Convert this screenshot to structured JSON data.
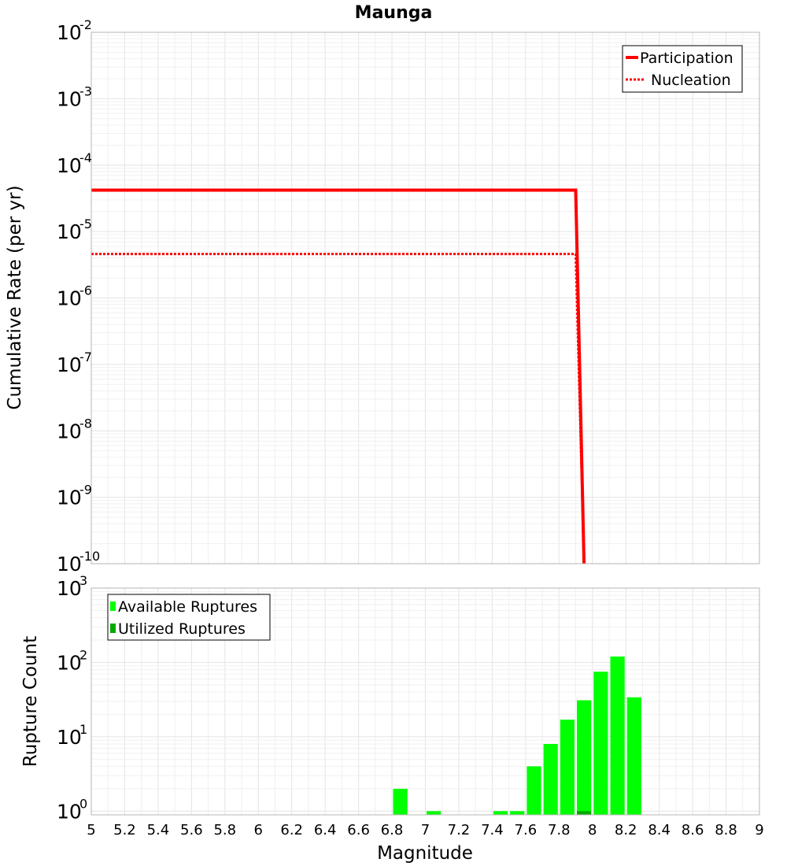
{
  "title": "Maunga",
  "colors": {
    "participation": "#ff0000",
    "nucleation": "#ff0000",
    "available": "#00ff00",
    "utilized": "#00aa00"
  },
  "chart_data": [
    {
      "type": "line",
      "title": "Maunga",
      "ylabel": "Cumulative Rate (per yr)",
      "xlabel": "",
      "yscale": "log",
      "xlim": [
        5,
        9
      ],
      "ylim_exp": [
        -10,
        -2
      ],
      "ytick_base": "10",
      "ytick_exponents": [
        "-10",
        "-9",
        "-8",
        "-7",
        "-6",
        "-5",
        "-4",
        "-3",
        "-2"
      ],
      "grid": true,
      "legend_position": "top-right",
      "series": [
        {
          "name": "Participation",
          "style": "solid",
          "x": [
            5.0,
            7.9,
            7.95
          ],
          "y": [
            4.2e-05,
            4.2e-05,
            1e-10
          ]
        },
        {
          "name": "Nucleation",
          "style": "dotted",
          "x": [
            5.0,
            7.9,
            7.95
          ],
          "y": [
            4.6e-06,
            4.6e-06,
            1e-10
          ]
        }
      ]
    },
    {
      "type": "bar",
      "title": "",
      "ylabel": "Rupture Count",
      "xlabel": "Magnitude",
      "yscale": "log",
      "xlim": [
        5,
        9
      ],
      "ylim_exp": [
        -0.05,
        3
      ],
      "ytick_base": "10",
      "ytick_exponents": [
        "0",
        "1",
        "2",
        "3"
      ],
      "xticks": [
        "5",
        "5.2",
        "5.4",
        "5.6",
        "5.8",
        "6",
        "6.2",
        "6.4",
        "6.6",
        "6.8",
        "7",
        "7.2",
        "7.4",
        "7.6",
        "7.8",
        "8",
        "8.2",
        "8.4",
        "8.6",
        "8.8",
        "9"
      ],
      "bin_width": 0.1,
      "grid": true,
      "legend_position": "top-left",
      "series": [
        {
          "name": "Available Ruptures",
          "x": [
            6.85,
            7.05,
            7.45,
            7.55,
            7.65,
            7.75,
            7.85,
            7.95,
            8.05,
            8.15,
            8.25
          ],
          "values": [
            2,
            1,
            1,
            1,
            4,
            8,
            17,
            31,
            75,
            120,
            34
          ]
        },
        {
          "name": "Utilized Ruptures",
          "x": [
            7.95
          ],
          "values": [
            1
          ]
        }
      ]
    }
  ]
}
